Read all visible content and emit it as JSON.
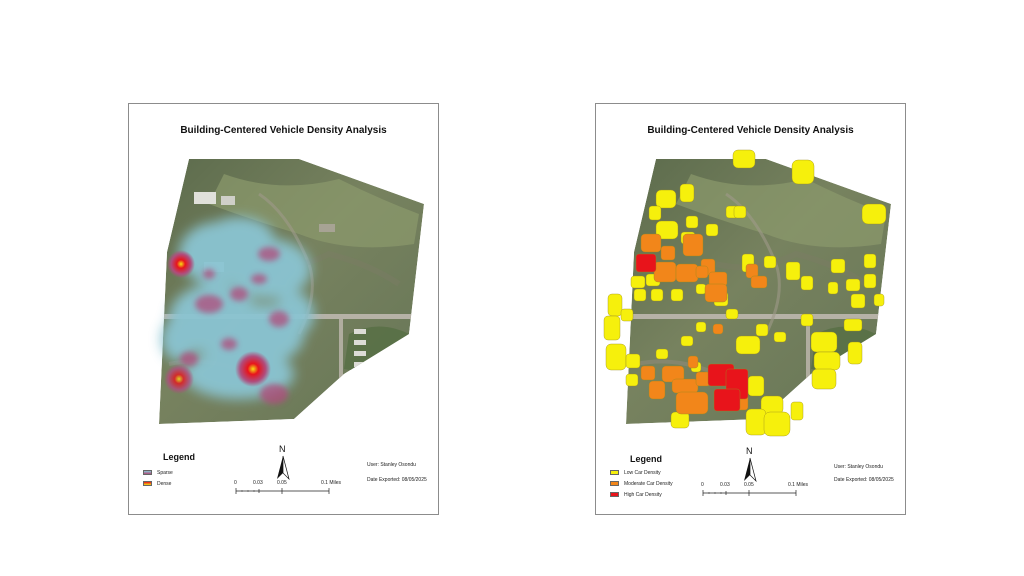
{
  "panels": [
    {
      "title": "Building-Centered Vehicle Density Analysis",
      "legend": {
        "title": "Legend",
        "items": [
          {
            "label": "Sparse"
          },
          {
            "label": "Dense"
          }
        ]
      },
      "north": "N",
      "scale": {
        "labels": [
          "0",
          "0.03",
          "0.05",
          "0.1 Miles"
        ]
      },
      "user": "User: Stanley Osondu",
      "date": "Date Exported:  08/05/2025"
    },
    {
      "title": "Building-Centered Vehicle Density Analysis",
      "legend": {
        "title": "Legend",
        "items": [
          {
            "label": "Low Car Density",
            "color": "#f6f00c"
          },
          {
            "label": "Moderate Car Density",
            "color": "#f2861a"
          },
          {
            "label": "High Car Density",
            "color": "#e8141b"
          }
        ]
      },
      "north": "N",
      "scale": {
        "labels": [
          "0",
          "0.03",
          "0.05",
          "0.1 Miles"
        ]
      },
      "user": "User: Stanley Osondu",
      "date": "Date Exported:  08/05/2025"
    }
  ],
  "colors": {
    "heat_sparse": "#8ac4d2",
    "heat_mid": "#b04c7c",
    "heat_dense": "#e8141b",
    "heat_peak": "#f6e014"
  }
}
